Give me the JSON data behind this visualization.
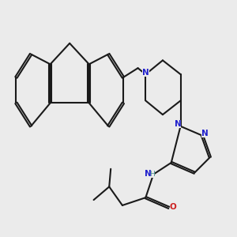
{
  "background_color": "#ebebeb",
  "bond_color": "#1a1a1a",
  "N_color": "#2020cc",
  "O_color": "#cc2020",
  "H_color": "#4a9090",
  "line_width": 1.5,
  "figsize": [
    3.0,
    3.0
  ],
  "dpi": 100,
  "xlim": [
    0,
    10
  ],
  "ylim": [
    0,
    10
  ]
}
